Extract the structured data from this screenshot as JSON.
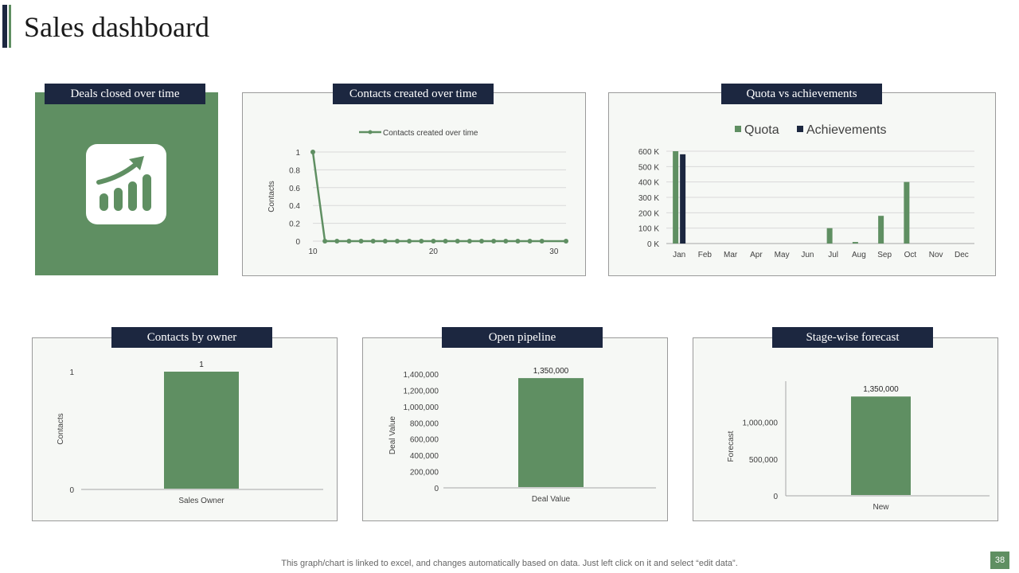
{
  "page": {
    "title": "Sales dashboard",
    "footer_note": "This graph/chart is linked to excel,  and changes automatically based on data. Just left click on it and select “edit data”.",
    "page_number": "38"
  },
  "colors": {
    "navy": "#1c2740",
    "green": "#5f8f62",
    "panel_bg": "#f6f8f5"
  },
  "panels": {
    "deals": {
      "header": "Deals closed over time",
      "icon": "growth-chart-icon"
    },
    "contacts_time": {
      "header": "Contacts created over time"
    },
    "quota": {
      "header": "Quota vs achievements"
    },
    "contacts_owner": {
      "header": "Contacts by owner"
    },
    "pipeline": {
      "header": "Open pipeline"
    },
    "forecast": {
      "header": "Stage-wise forecast"
    }
  },
  "chart_data": [
    {
      "id": "contacts_time",
      "type": "line",
      "legend": "Contacts created over time",
      "ylabel": "Contacts",
      "xlim": [
        10,
        31
      ],
      "ylim": [
        0,
        1
      ],
      "x_ticks": [
        "10",
        "20",
        "30"
      ],
      "y_ticks": [
        "0",
        "0.2",
        "0.4",
        "0.6",
        "0.8",
        "1"
      ],
      "series": [
        {
          "name": "Contacts created over time",
          "x": [
            10,
            11,
            12,
            13,
            14,
            15,
            16,
            17,
            18,
            19,
            20,
            21,
            22,
            23,
            24,
            25,
            26,
            27,
            28,
            29,
            31
          ],
          "y": [
            1,
            0,
            0,
            0,
            0,
            0,
            0,
            0,
            0,
            0,
            0,
            0,
            0,
            0,
            0,
            0,
            0,
            0,
            0,
            0,
            0
          ]
        }
      ]
    },
    {
      "id": "quota",
      "type": "bar",
      "categories": [
        "Jan",
        "Feb",
        "Mar",
        "Apr",
        "May",
        "Jun",
        "Jul",
        "Aug",
        "Sep",
        "Oct",
        "Nov",
        "Dec"
      ],
      "ylim": [
        0,
        600000
      ],
      "y_ticks": [
        "0 K",
        "100 K",
        "200 K",
        "300 K",
        "400 K",
        "500 K",
        "600 K"
      ],
      "legend_position": "top",
      "series": [
        {
          "name": "Quota",
          "color": "#5f8f62",
          "values": [
            600000,
            0,
            0,
            0,
            0,
            0,
            100000,
            10000,
            180000,
            400000,
            0,
            0
          ]
        },
        {
          "name": "Achievements",
          "color": "#1c2740",
          "values": [
            580000,
            0,
            0,
            0,
            0,
            0,
            0,
            0,
            0,
            0,
            0,
            0
          ]
        }
      ]
    },
    {
      "id": "contacts_owner",
      "type": "bar",
      "categories": [
        "Sales Owner"
      ],
      "values": [
        1
      ],
      "value_labels": [
        "1"
      ],
      "ylabel": "Contacts",
      "ylim": [
        0,
        1
      ],
      "y_ticks": [
        "0",
        "1"
      ]
    },
    {
      "id": "pipeline",
      "type": "bar",
      "categories": [
        "Deal Value"
      ],
      "values": [
        1350000
      ],
      "value_labels": [
        "1,350,000"
      ],
      "ylabel": "Deal Value",
      "ylim": [
        0,
        1400000
      ],
      "y_ticks": [
        "0",
        "200,000",
        "400,000",
        "600,000",
        "800,000",
        "1,000,000",
        "1,200,000",
        "1,400,000"
      ]
    },
    {
      "id": "forecast",
      "type": "bar",
      "categories": [
        "New"
      ],
      "values": [
        1350000
      ],
      "value_labels": [
        "1,350,000"
      ],
      "ylabel": "Forecast",
      "ylim": [
        0,
        1450000
      ],
      "y_ticks": [
        "0",
        "500,000",
        "1,000,000"
      ],
      "y_tick_values": [
        0,
        500000,
        1000000
      ]
    }
  ]
}
